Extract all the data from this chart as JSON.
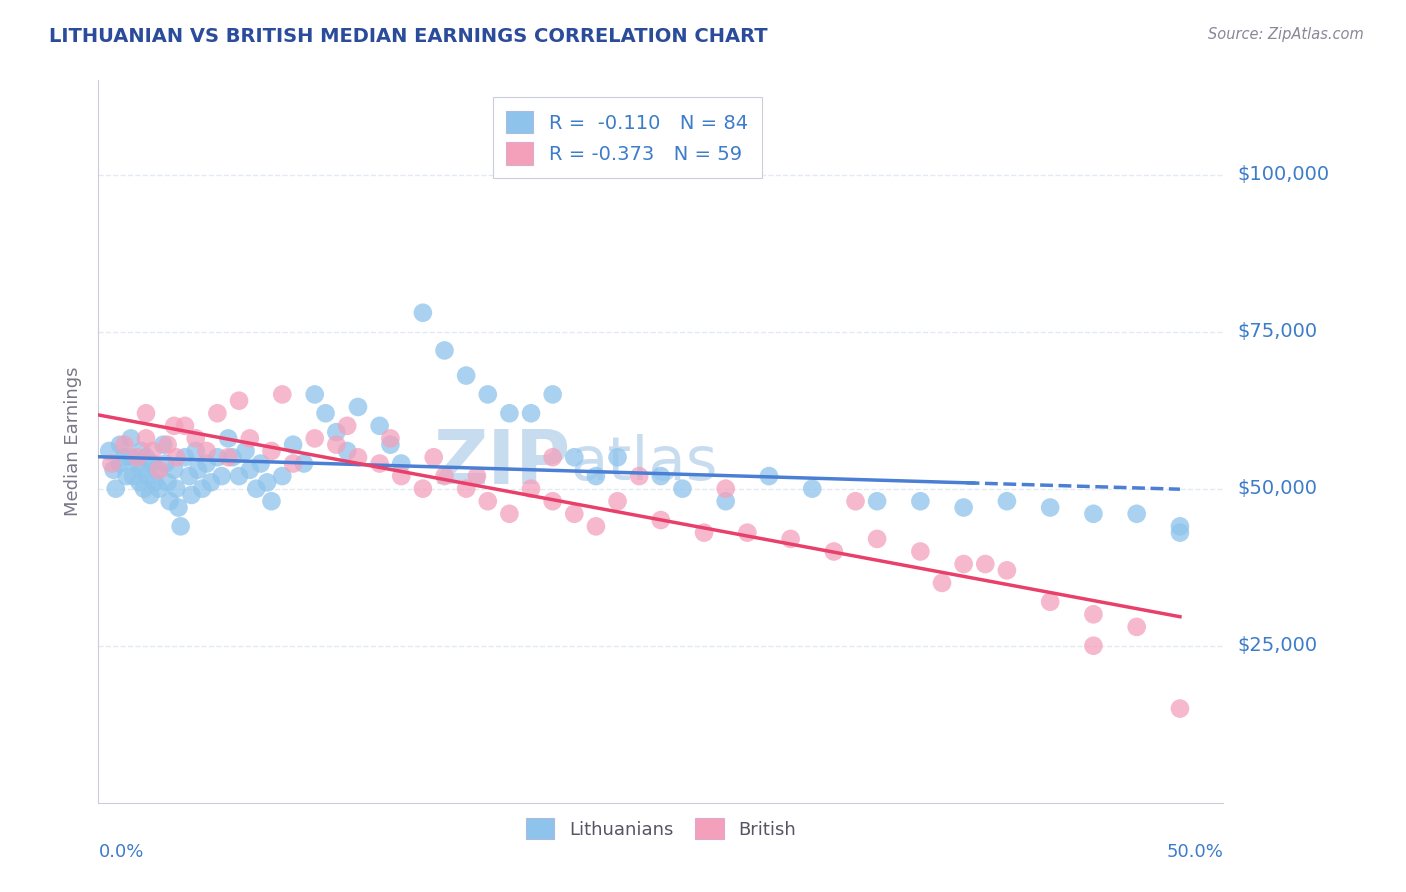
{
  "title": "LITHUANIAN VS BRITISH MEDIAN EARNINGS CORRELATION CHART",
  "source_text": "Source: ZipAtlas.com",
  "ylabel": "Median Earnings",
  "ytick_labels": [
    "$25,000",
    "$50,000",
    "$75,000",
    "$100,000"
  ],
  "ytick_values": [
    25000,
    50000,
    75000,
    100000
  ],
  "ylim": [
    0,
    115000
  ],
  "xlim": [
    0.0,
    0.52
  ],
  "blue_color": "#8EC4EB",
  "pink_color": "#F4A0BB",
  "trend_blue_color": "#4A7FD4",
  "trend_pink_color": "#E8406A",
  "axis_label_color": "#3D7CC9",
  "title_color": "#2B4C9B",
  "watermark_color": "#C8DCF0",
  "background_color": "#FFFFFF",
  "grid_color": "#E2EAF4",
  "blue_r": "-0.110",
  "blue_n": "84",
  "pink_r": "-0.373",
  "pink_n": "59",
  "blue_scatter_x": [
    0.005,
    0.007,
    0.008,
    0.01,
    0.01,
    0.012,
    0.013,
    0.015,
    0.015,
    0.016,
    0.018,
    0.019,
    0.02,
    0.02,
    0.021,
    0.022,
    0.023,
    0.024,
    0.025,
    0.026,
    0.027,
    0.028,
    0.03,
    0.031,
    0.032,
    0.033,
    0.035,
    0.036,
    0.037,
    0.038,
    0.04,
    0.042,
    0.043,
    0.045,
    0.046,
    0.048,
    0.05,
    0.052,
    0.055,
    0.057,
    0.06,
    0.062,
    0.065,
    0.068,
    0.07,
    0.073,
    0.075,
    0.078,
    0.08,
    0.085,
    0.09,
    0.095,
    0.1,
    0.105,
    0.11,
    0.115,
    0.12,
    0.13,
    0.135,
    0.14,
    0.15,
    0.16,
    0.17,
    0.18,
    0.19,
    0.2,
    0.21,
    0.22,
    0.23,
    0.24,
    0.26,
    0.27,
    0.29,
    0.31,
    0.33,
    0.36,
    0.38,
    0.4,
    0.42,
    0.44,
    0.46,
    0.48,
    0.5,
    0.5
  ],
  "blue_scatter_y": [
    56000,
    53000,
    50000,
    57000,
    54000,
    55000,
    52000,
    58000,
    55000,
    52000,
    54000,
    51000,
    56000,
    53000,
    50000,
    55000,
    52000,
    49000,
    54000,
    51000,
    53000,
    50000,
    57000,
    54000,
    51000,
    48000,
    53000,
    50000,
    47000,
    44000,
    55000,
    52000,
    49000,
    56000,
    53000,
    50000,
    54000,
    51000,
    55000,
    52000,
    58000,
    55000,
    52000,
    56000,
    53000,
    50000,
    54000,
    51000,
    48000,
    52000,
    57000,
    54000,
    65000,
    62000,
    59000,
    56000,
    63000,
    60000,
    57000,
    54000,
    78000,
    72000,
    68000,
    65000,
    62000,
    62000,
    65000,
    55000,
    52000,
    55000,
    52000,
    50000,
    48000,
    52000,
    50000,
    48000,
    48000,
    47000,
    48000,
    47000,
    46000,
    46000,
    44000,
    43000
  ],
  "pink_scatter_x": [
    0.006,
    0.012,
    0.018,
    0.022,
    0.025,
    0.028,
    0.032,
    0.036,
    0.04,
    0.045,
    0.05,
    0.06,
    0.07,
    0.08,
    0.09,
    0.1,
    0.11,
    0.12,
    0.13,
    0.14,
    0.15,
    0.16,
    0.17,
    0.18,
    0.19,
    0.2,
    0.21,
    0.22,
    0.23,
    0.24,
    0.26,
    0.28,
    0.3,
    0.32,
    0.34,
    0.36,
    0.38,
    0.4,
    0.42,
    0.44,
    0.46,
    0.48,
    0.5,
    0.022,
    0.035,
    0.055,
    0.065,
    0.085,
    0.115,
    0.135,
    0.155,
    0.175,
    0.21,
    0.25,
    0.29,
    0.35,
    0.41,
    0.46,
    0.39
  ],
  "pink_scatter_y": [
    54000,
    57000,
    55000,
    58000,
    56000,
    53000,
    57000,
    55000,
    60000,
    58000,
    56000,
    55000,
    58000,
    56000,
    54000,
    58000,
    57000,
    55000,
    54000,
    52000,
    50000,
    52000,
    50000,
    48000,
    46000,
    50000,
    48000,
    46000,
    44000,
    48000,
    45000,
    43000,
    43000,
    42000,
    40000,
    42000,
    40000,
    38000,
    37000,
    32000,
    30000,
    28000,
    15000,
    62000,
    60000,
    62000,
    64000,
    65000,
    60000,
    58000,
    55000,
    52000,
    55000,
    52000,
    50000,
    48000,
    38000,
    25000,
    35000
  ]
}
